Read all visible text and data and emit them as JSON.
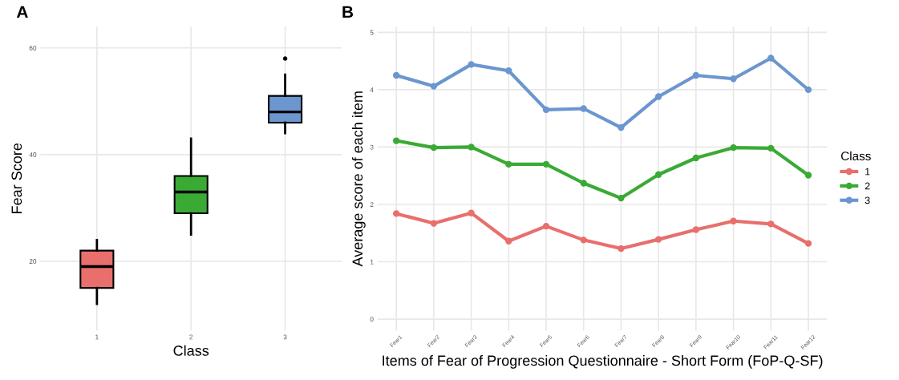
{
  "chart_data": [
    {
      "type": "box",
      "title": "A",
      "xlabel": "Class",
      "ylabel": "Fear Score",
      "categories": [
        "1",
        "2",
        "3"
      ],
      "colors": [
        "#e86f6c",
        "#3aaa35",
        "#6b96cf"
      ],
      "boxes": [
        {
          "low": 12,
          "q1": 15,
          "median": 19,
          "q3": 22,
          "high": 24
        },
        {
          "low": 25,
          "q1": 29,
          "median": 33,
          "q3": 36,
          "high": 43
        },
        {
          "low": 44,
          "q1": 46,
          "median": 48,
          "q3": 51,
          "high": 55,
          "outliers": [
            58
          ]
        }
      ],
      "ylim": [
        7,
        64
      ],
      "yticks": [
        20,
        40,
        60
      ],
      "grid": true
    },
    {
      "type": "line",
      "title": "B",
      "xlabel": "Items of Fear of Progression Questionnaire - Short Form (FoP-Q-SF)",
      "ylabel": "Average score of each item",
      "legend_title": "Class",
      "legend": "right",
      "marker": "circle",
      "line_style": "solid",
      "grid": true,
      "categories": [
        "Fear1",
        "Fear2",
        "Fear3",
        "Fear4",
        "Fear5",
        "Fear6",
        "Fear7",
        "Fear8",
        "Fear9",
        "Fear10",
        "Fear11",
        "Fear12"
      ],
      "series": [
        {
          "name": "1",
          "color": "#e86f6c",
          "values": [
            1.84,
            1.67,
            1.85,
            1.36,
            1.62,
            1.38,
            1.23,
            1.39,
            1.56,
            1.71,
            1.66,
            1.32
          ]
        },
        {
          "name": "2",
          "color": "#3aaa35",
          "values": [
            3.11,
            2.99,
            3.0,
            2.7,
            2.7,
            2.37,
            2.11,
            2.52,
            2.81,
            2.99,
            2.98,
            2.51
          ]
        },
        {
          "name": "3",
          "color": "#6b96cf",
          "values": [
            4.25,
            4.06,
            4.44,
            4.33,
            3.65,
            3.67,
            3.34,
            3.88,
            4.25,
            4.19,
            4.55,
            4.0
          ]
        }
      ],
      "ylim": [
        -0.2,
        5.1
      ],
      "yticks": [
        0,
        1,
        2,
        3,
        4,
        5
      ]
    }
  ]
}
